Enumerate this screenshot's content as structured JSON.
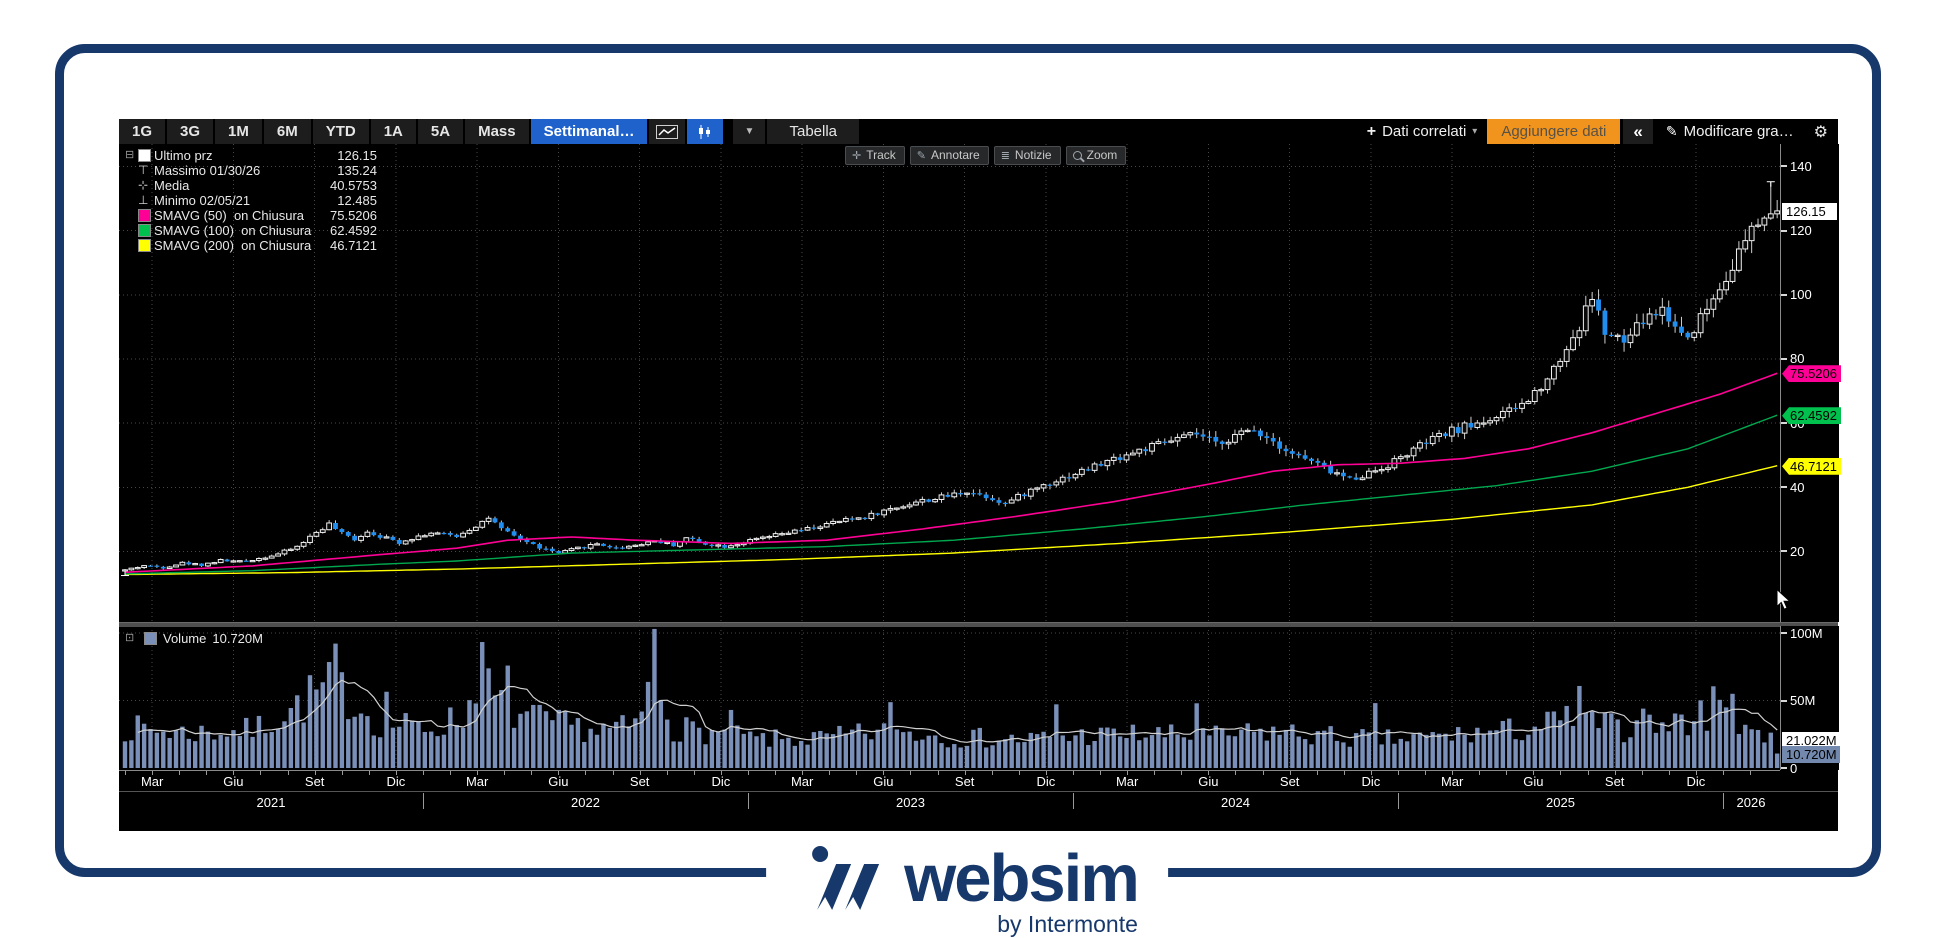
{
  "frame": {
    "border_color": "#17386b"
  },
  "logo": {
    "brand": "websim",
    "byline": "by Intermonte",
    "color": "#17386b"
  },
  "icon_glyphs": {
    "plus": "+",
    "caret_down": "▾",
    "caret_solid": "▼",
    "collapse": "«",
    "gear": "⚙",
    "expander": "⊟",
    "expander_small": "⊡",
    "high_marker": "⊤",
    "mean_marker": "⊹",
    "low_marker": "⊥",
    "track": "✛",
    "annotate": "✎",
    "news": "≣"
  },
  "toolbar": {
    "range_buttons": [
      "1G",
      "3G",
      "1M",
      "6M",
      "YTD",
      "1A",
      "5A",
      "Mass"
    ],
    "interval_label": "Settimanal…",
    "table_label": "Tabella",
    "related_label": "Dati correlati",
    "add_data_label": "Aggiungere dati",
    "collapse_label": "«",
    "edit_label": "Modificare gra…"
  },
  "overlay_buttons": [
    {
      "label": "Track",
      "icon": "track"
    },
    {
      "label": "Annotare",
      "icon": "annotate"
    },
    {
      "label": "Notizie",
      "icon": "news"
    },
    {
      "label": "Zoom",
      "icon": "magnifier"
    }
  ],
  "legend": {
    "rows": [
      {
        "glyph": "⊟",
        "chip": "#ffffff",
        "label": "Ultimo prz",
        "value": "126.15"
      },
      {
        "glyph2": "⊤",
        "label": "Massimo 01/30/26",
        "value": "135.24"
      },
      {
        "glyph2": "⊹",
        "label": "Media",
        "value": "40.5753"
      },
      {
        "glyph2": "⊥",
        "label": "Minimo 02/05/21",
        "value": "12.485"
      },
      {
        "chip": "#ff0096",
        "label": "SMAVG (50)  on Chiusura",
        "value": "75.5206"
      },
      {
        "chip": "#00c14d",
        "label": "SMAVG (100)  on Chiusura",
        "value": "62.4592"
      },
      {
        "chip": "#ffff00",
        "label": "SMAVG (200)  on Chiusura",
        "value": "46.7121"
      }
    ]
  },
  "volume_legend": {
    "expander": "⊡",
    "label": "Volume",
    "value": "10.720M",
    "chip": "#7a90b8"
  },
  "price_axis": {
    "ticks": [
      140,
      120,
      100,
      80,
      60,
      40,
      20
    ],
    "last_price_label": "126.15",
    "last_price_value": 126.15,
    "sma_boxes": [
      {
        "label": "75.5206",
        "value": 75.5206,
        "bg": "#ff0096",
        "fg": "#000000"
      },
      {
        "label": "62.4592",
        "value": 62.4592,
        "bg": "#00c14d",
        "fg": "#000000"
      },
      {
        "label": "46.7121",
        "value": 46.7121,
        "bg": "#ffff00",
        "fg": "#000000"
      }
    ]
  },
  "volume_axis": {
    "ticks": [
      {
        "label": "100M",
        "value": 100
      },
      {
        "label": "50M",
        "value": 50
      },
      {
        "label": "0",
        "value": 0
      }
    ],
    "boxes": [
      {
        "label": "21.022M",
        "value": 21.022,
        "bg": "#ffffff",
        "fg": "#000000"
      },
      {
        "label": "10.720M",
        "value": 10.72,
        "bg": "#7388ad",
        "fg": "#000000"
      }
    ]
  },
  "xaxis": {
    "months": [
      "Mar",
      "Giu",
      "Set",
      "Dic"
    ],
    "years": [
      "2021",
      "2022",
      "2023",
      "2024",
      "2025",
      "2026"
    ]
  },
  "chart_data": {
    "type": "candlestick+volume",
    "x_unit": "week",
    "start": "2021-02",
    "end": "2026-02",
    "weeks": 260,
    "title": "",
    "ylabel": "",
    "ylim": [
      -3,
      147
    ],
    "volume_ylim_M": [
      0,
      105
    ],
    "grid": "dotted",
    "last": 126.15,
    "high_marker": {
      "date": "01/30/26",
      "value": 135.24
    },
    "low_marker": {
      "date": "02/05/21",
      "value": 12.485
    },
    "mean": 40.5753,
    "sma50_last": 75.5206,
    "sma100_last": 62.4592,
    "sma200_last": 46.7121,
    "last_volume_M": 10.72,
    "avg_volume_box_M": 21.022,
    "price_path_anchors": [
      [
        0,
        14.2
      ],
      [
        3,
        15.6
      ],
      [
        6,
        15.0
      ],
      [
        9,
        16.4
      ],
      [
        12,
        15.8
      ],
      [
        15,
        17.2
      ],
      [
        18,
        16.8
      ],
      [
        21,
        17.8
      ],
      [
        24,
        19.2
      ],
      [
        27,
        21.5
      ],
      [
        30,
        26.0
      ],
      [
        32,
        28.5
      ],
      [
        34,
        25.5
      ],
      [
        36,
        23.8
      ],
      [
        38,
        26.2
      ],
      [
        40,
        24.8
      ],
      [
        43,
        22.8
      ],
      [
        45,
        24.2
      ],
      [
        48,
        25.8
      ],
      [
        52,
        24.8
      ],
      [
        55,
        28.0
      ],
      [
        57,
        30.5
      ],
      [
        59,
        26.8
      ],
      [
        62,
        23.8
      ],
      [
        65,
        21.2
      ],
      [
        68,
        19.4
      ],
      [
        71,
        21.0
      ],
      [
        74,
        22.4
      ],
      [
        77,
        21.0
      ],
      [
        80,
        22.0
      ],
      [
        83,
        23.4
      ],
      [
        86,
        22.0
      ],
      [
        88,
        24.2
      ],
      [
        91,
        22.4
      ],
      [
        94,
        21.6
      ],
      [
        97,
        22.8
      ],
      [
        100,
        24.2
      ],
      [
        104,
        25.8
      ],
      [
        108,
        27.4
      ],
      [
        112,
        29.4
      ],
      [
        116,
        30.8
      ],
      [
        120,
        33.2
      ],
      [
        124,
        35.4
      ],
      [
        128,
        36.8
      ],
      [
        132,
        38.8
      ],
      [
        135,
        37.2
      ],
      [
        138,
        35.0
      ],
      [
        141,
        38.0
      ],
      [
        144,
        40.8
      ],
      [
        148,
        43.6
      ],
      [
        152,
        46.5
      ],
      [
        156,
        49.5
      ],
      [
        160,
        52.0
      ],
      [
        164,
        54.5
      ],
      [
        168,
        56.5
      ],
      [
        171,
        53.5
      ],
      [
        174,
        56.0
      ],
      [
        177,
        58.0
      ],
      [
        180,
        54.5
      ],
      [
        183,
        50.5
      ],
      [
        186,
        48.0
      ],
      [
        189,
        45.0
      ],
      [
        192,
        42.5
      ],
      [
        195,
        44.5
      ],
      [
        198,
        47.0
      ],
      [
        201,
        50.5
      ],
      [
        204,
        54.0
      ],
      [
        208,
        57.5
      ],
      [
        212,
        60.0
      ],
      [
        216,
        62.5
      ],
      [
        220,
        67.0
      ],
      [
        224,
        77.0
      ],
      [
        228,
        90.0
      ],
      [
        230,
        100.0
      ],
      [
        232,
        88.0
      ],
      [
        235,
        85.0
      ],
      [
        238,
        92.0
      ],
      [
        241,
        95.5
      ],
      [
        243,
        90.0
      ],
      [
        245,
        87.0
      ],
      [
        247,
        93.0
      ],
      [
        249,
        99.0
      ],
      [
        251,
        106.0
      ],
      [
        253,
        113.0
      ],
      [
        255,
        119.5
      ],
      [
        257,
        124.5
      ],
      [
        259,
        126.15
      ]
    ],
    "sma50_anchors": [
      [
        0,
        13.5
      ],
      [
        20,
        15.5
      ],
      [
        40,
        19
      ],
      [
        52,
        21
      ],
      [
        60,
        23.5
      ],
      [
        70,
        24.5
      ],
      [
        80,
        23.5
      ],
      [
        95,
        22.5
      ],
      [
        110,
        23.5
      ],
      [
        125,
        27
      ],
      [
        140,
        31
      ],
      [
        155,
        35.5
      ],
      [
        170,
        41
      ],
      [
        180,
        45
      ],
      [
        190,
        47
      ],
      [
        200,
        47.5
      ],
      [
        210,
        49
      ],
      [
        220,
        52
      ],
      [
        230,
        57
      ],
      [
        240,
        63
      ],
      [
        250,
        69
      ],
      [
        259,
        75.5206
      ]
    ],
    "sma100_anchors": [
      [
        0,
        13
      ],
      [
        20,
        14
      ],
      [
        40,
        16
      ],
      [
        52,
        17
      ],
      [
        70,
        19.5
      ],
      [
        90,
        20.5
      ],
      [
        110,
        21.5
      ],
      [
        130,
        23.5
      ],
      [
        150,
        27
      ],
      [
        170,
        31
      ],
      [
        185,
        34.5
      ],
      [
        200,
        37.5
      ],
      [
        215,
        40.5
      ],
      [
        230,
        45
      ],
      [
        245,
        52
      ],
      [
        259,
        62.4592
      ]
    ],
    "sma200_anchors": [
      [
        0,
        12.8
      ],
      [
        26,
        13.4
      ],
      [
        52,
        14.5
      ],
      [
        78,
        16
      ],
      [
        104,
        17.5
      ],
      [
        130,
        19.5
      ],
      [
        156,
        22.5
      ],
      [
        182,
        26
      ],
      [
        208,
        30
      ],
      [
        230,
        34.5
      ],
      [
        245,
        40
      ],
      [
        259,
        46.7121
      ]
    ],
    "volume_anchors": [
      [
        0,
        30
      ],
      [
        10,
        26
      ],
      [
        20,
        28
      ],
      [
        28,
        48
      ],
      [
        33,
        62
      ],
      [
        40,
        32
      ],
      [
        48,
        30
      ],
      [
        53,
        38
      ],
      [
        56,
        62
      ],
      [
        60,
        42
      ],
      [
        66,
        34
      ],
      [
        74,
        28
      ],
      [
        80,
        30
      ],
      [
        83,
        72
      ],
      [
        86,
        30
      ],
      [
        92,
        26
      ],
      [
        100,
        21
      ],
      [
        110,
        22
      ],
      [
        120,
        28
      ],
      [
        130,
        23
      ],
      [
        140,
        21
      ],
      [
        150,
        24
      ],
      [
        160,
        25
      ],
      [
        170,
        23
      ],
      [
        180,
        27
      ],
      [
        190,
        23
      ],
      [
        200,
        21
      ],
      [
        210,
        25
      ],
      [
        220,
        29
      ],
      [
        228,
        38
      ],
      [
        234,
        29
      ],
      [
        240,
        31
      ],
      [
        246,
        36
      ],
      [
        250,
        42
      ],
      [
        255,
        30
      ],
      [
        258,
        22
      ],
      [
        259,
        10.72
      ]
    ],
    "volume_spikes": {
      "29": 68,
      "33": 85,
      "41": 58,
      "56": 90,
      "60": 70,
      "83": 102,
      "95": 45,
      "120": 52,
      "146": 48,
      "168": 50,
      "196": 44,
      "228": 56,
      "238": 48,
      "249": 62,
      "252": 55
    },
    "series_colors": {
      "up": "#f0f0f0",
      "down": "#1f8ef0",
      "wick": "#cfcfcf",
      "sma50": "#ff0096",
      "sma100": "#00a84f",
      "sma200": "#ffff00",
      "volume": "#7a90b8",
      "volume_ma": "#d0d0d0"
    }
  }
}
